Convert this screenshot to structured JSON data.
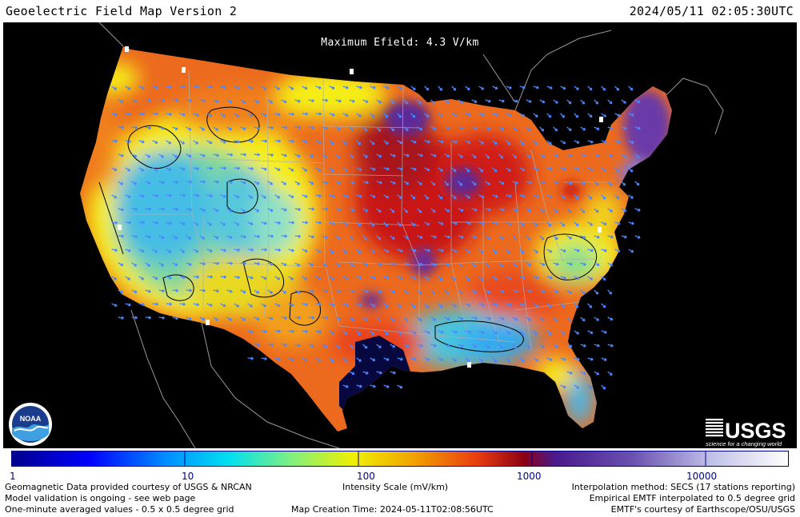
{
  "header": {
    "title": "Geoelectric Field Map Version 2",
    "timestamp": "2024/05/11 02:05:30UTC"
  },
  "map": {
    "max_efield_label": "Maximum Efield: 4.3 V/km",
    "colors": {
      "background": "#000000",
      "low_blue": "#36b6e8",
      "cyan": "#69e6e6",
      "yellow": "#f5ee16",
      "orange": "#f0711e",
      "red": "#d81e16",
      "dark_red": "#9c0f18",
      "purple": "#5b2a98",
      "navy": "#06083f",
      "arrow": "#4a88ff",
      "state_lines": "#a8a8a8"
    }
  },
  "logos": {
    "noaa_text": "NOAA",
    "usgs_text": "USGS",
    "usgs_tagline": "science for a changing world"
  },
  "color_scale": {
    "ticks": [
      "1",
      "10",
      "100",
      "1000",
      "10000"
    ],
    "title": "Intensity Scale (mV/km)"
  },
  "footer": {
    "left": [
      "Geomagnetic Data provided courtesy of USGS & NRCAN",
      "Model validation is ongoing - see web page",
      "One-minute averaged values - 0.5 x 0.5 degree grid"
    ],
    "center": "Map Creation Time: 2024-05-11T02:08:56UTC",
    "right": [
      "Interpolation method: SECS (17 stations reporting)",
      "Empirical EMTF interpolated to 0.5 degree grid",
      "EMTF's courtesy of Earthscope/OSU/USGS"
    ]
  }
}
